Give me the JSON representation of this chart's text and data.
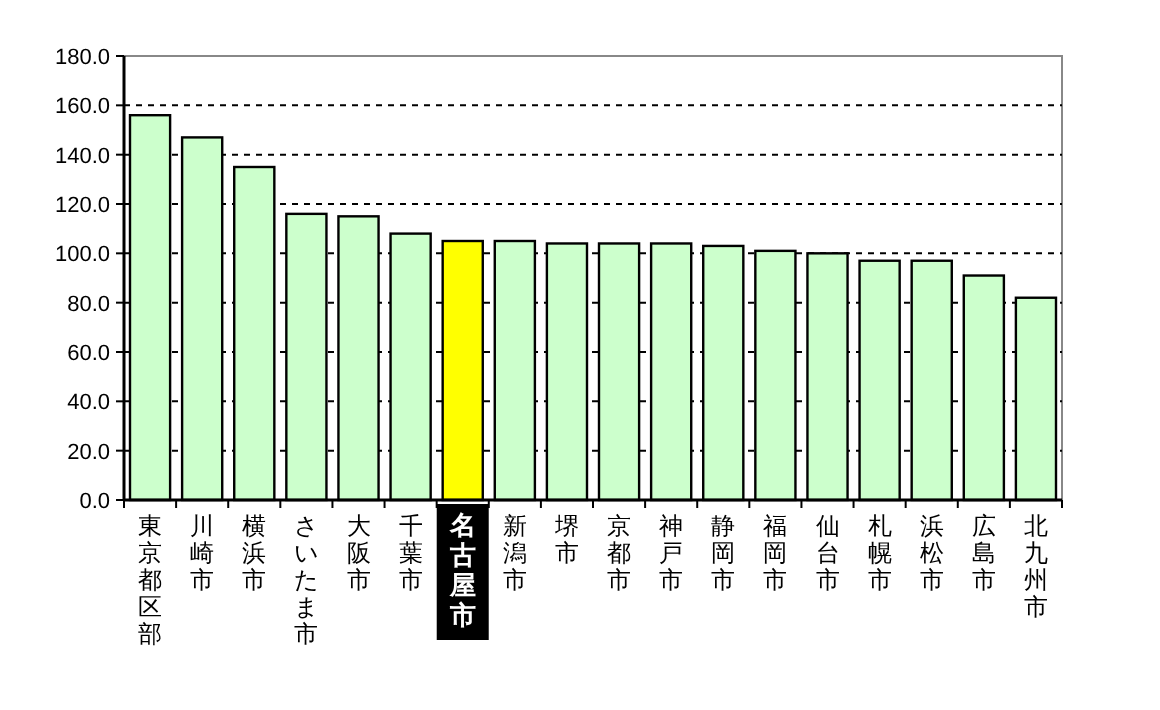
{
  "chart_data": {
    "type": "bar",
    "categories": [
      "東京都区部",
      "川崎市",
      "横浜市",
      "さいたま市",
      "大阪市",
      "千葉市",
      "名古屋市",
      "新潟市",
      "堺市",
      "京都市",
      "神戸市",
      "静岡市",
      "福岡市",
      "仙台市",
      "札幌市",
      "浜松市",
      "広島市",
      "北九州市"
    ],
    "values": [
      156,
      147,
      135,
      116,
      115,
      108,
      105,
      105,
      104,
      104,
      104,
      103,
      101,
      100,
      97,
      97,
      91,
      82
    ],
    "colors": [
      "#ccffcc",
      "#ccffcc",
      "#ccffcc",
      "#ccffcc",
      "#ccffcc",
      "#ccffcc",
      "#ffff00",
      "#ccffcc",
      "#ccffcc",
      "#ccffcc",
      "#ccffcc",
      "#ccffcc",
      "#ccffcc",
      "#ccffcc",
      "#ccffcc",
      "#ccffcc",
      "#ccffcc",
      "#ccffcc"
    ],
    "ylim": [
      0,
      180
    ],
    "yticks": [
      {
        "value": 0,
        "label": "0.0"
      },
      {
        "value": 20,
        "label": "20.0"
      },
      {
        "value": 40,
        "label": "40.0"
      },
      {
        "value": 60,
        "label": "60.0"
      },
      {
        "value": 80,
        "label": "80.0"
      },
      {
        "value": 100,
        "label": "100.0"
      },
      {
        "value": 120,
        "label": "120.0"
      },
      {
        "value": 140,
        "label": "140.0"
      },
      {
        "value": 160,
        "label": "160.0"
      },
      {
        "value": 180,
        "label": "180.0"
      }
    ],
    "grid": "y"
  }
}
